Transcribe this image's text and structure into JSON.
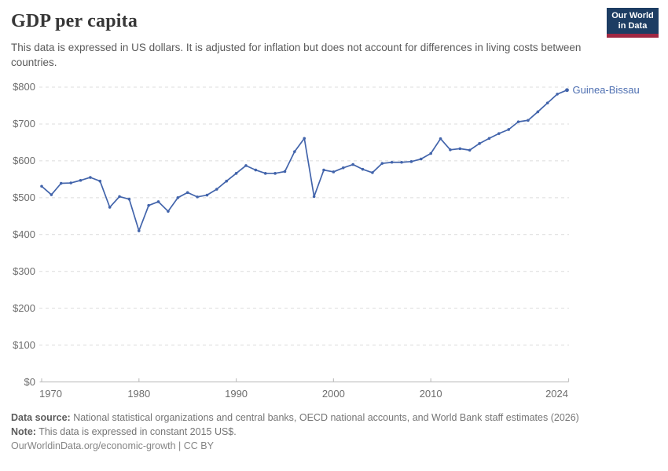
{
  "header": {
    "title": "GDP per capita",
    "subtitle": "This data is expressed in US dollars. It is adjusted for inflation but does not account for differences in living costs between countries.",
    "logo": {
      "line1": "Our World",
      "line2": "in Data",
      "bg_color": "#1d3d63",
      "accent_color": "#a02742"
    }
  },
  "chart_data": {
    "type": "line",
    "title": "GDP per capita",
    "end_label": "Guinea-Bissau",
    "xlim": [
      1970,
      2024
    ],
    "ylim": [
      0,
      800
    ],
    "grid": "horizontal-dashed",
    "line_color": "#4264ab",
    "label_color": "#4e6fb1",
    "grid_color": "#dcdcdc",
    "axis_color": "#c3c3c3",
    "y_ticks": [
      {
        "value": 0,
        "label": "$0"
      },
      {
        "value": 100,
        "label": "$100"
      },
      {
        "value": 200,
        "label": "$200"
      },
      {
        "value": 300,
        "label": "$300"
      },
      {
        "value": 400,
        "label": "$400"
      },
      {
        "value": 500,
        "label": "$500"
      },
      {
        "value": 600,
        "label": "$600"
      },
      {
        "value": 700,
        "label": "$700"
      },
      {
        "value": 800,
        "label": "$800"
      }
    ],
    "x_ticks": [
      {
        "year": 1970,
        "label": "1970"
      },
      {
        "year": 1980,
        "label": "1980"
      },
      {
        "year": 1990,
        "label": "1990"
      },
      {
        "year": 2000,
        "label": "2000"
      },
      {
        "year": 2010,
        "label": "2010"
      },
      {
        "year": 2024,
        "label": "2024"
      }
    ],
    "series": [
      {
        "name": "Guinea-Bissau",
        "years": [
          1970,
          1971,
          1972,
          1973,
          1974,
          1975,
          1976,
          1977,
          1978,
          1979,
          1980,
          1981,
          1982,
          1983,
          1984,
          1985,
          1986,
          1987,
          1988,
          1989,
          1990,
          1991,
          1992,
          1993,
          1994,
          1995,
          1996,
          1997,
          1998,
          1999,
          2000,
          2001,
          2002,
          2003,
          2004,
          2005,
          2006,
          2007,
          2008,
          2009,
          2010,
          2011,
          2012,
          2013,
          2014,
          2015,
          2016,
          2017,
          2018,
          2019,
          2020,
          2021,
          2022,
          2023,
          2024
        ],
        "values": [
          531,
          508,
          539,
          540,
          547,
          555,
          545,
          474,
          503,
          496,
          410,
          479,
          489,
          463,
          500,
          514,
          502,
          507,
          523,
          545,
          566,
          587,
          575,
          566,
          566,
          571,
          625,
          661,
          503,
          575,
          570,
          581,
          590,
          577,
          568,
          593,
          596,
          596,
          598,
          605,
          620,
          660,
          630,
          633,
          629,
          647,
          661,
          674,
          685,
          706,
          710,
          733,
          757,
          781,
          792
        ]
      }
    ]
  },
  "footer": {
    "source_label": "Data source:",
    "source_text": " National statistical organizations and central banks, OECD national accounts, and World Bank staff estimates (2026)",
    "note_label": "Note:",
    "note_text": " This data is expressed in constant 2015 US$.",
    "link_text": "OurWorldinData.org/economic-growth | CC BY"
  }
}
